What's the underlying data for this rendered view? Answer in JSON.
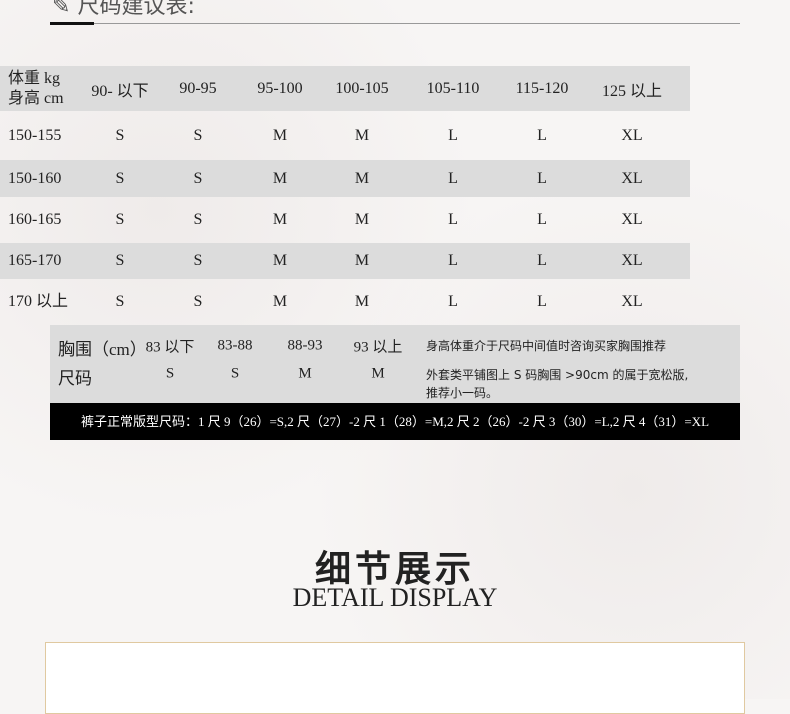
{
  "header": {
    "title": "尺码建议表:"
  },
  "table": {
    "header_label_1": "体重 kg",
    "header_label_2": "身高 cm",
    "weights": [
      "90- 以下",
      "90-95",
      "95-100",
      "100-105",
      "105-110",
      "115-120",
      "125 以上"
    ],
    "rows": [
      {
        "height": "150-155",
        "sizes": [
          "S",
          "S",
          "M",
          "M",
          "L",
          "L",
          "XL"
        ]
      },
      {
        "height": "150-160",
        "sizes": [
          "S",
          "S",
          "M",
          "M",
          "L",
          "L",
          "XL"
        ]
      },
      {
        "height": "160-165",
        "sizes": [
          "S",
          "S",
          "M",
          "M",
          "L",
          "L",
          "XL"
        ]
      },
      {
        "height": "165-170",
        "sizes": [
          "S",
          "S",
          "M",
          "M",
          "L",
          "L",
          "XL"
        ]
      },
      {
        "height": "170 以上",
        "sizes": [
          "S",
          "S",
          "M",
          "M",
          "L",
          "L",
          "XL"
        ]
      }
    ]
  },
  "chest": {
    "label": "胸围（cm）",
    "ranges": [
      "83 以下",
      "83-88",
      "88-93",
      "93 以上"
    ],
    "size_label": "尺码",
    "sizes": [
      "S",
      "S",
      "M",
      "M"
    ],
    "note_1": "身高体重介于尺码中间值时咨询买家胸围推荐",
    "note_2": "外套类平铺图上 S 码胸围 >90cm 的属于宽松版,",
    "note_3": "推荐小一码。"
  },
  "pants": {
    "text": "裤子正常版型尺码：1 尺 9（26）=S,2 尺（27）-2 尺 1（28）=M,2 尺 2（26）-2 尺 3（30）=L,2 尺 4（31）=XL"
  },
  "detail": {
    "title_cn": "细节展示",
    "title_en": "DETAIL DISPLAY"
  }
}
